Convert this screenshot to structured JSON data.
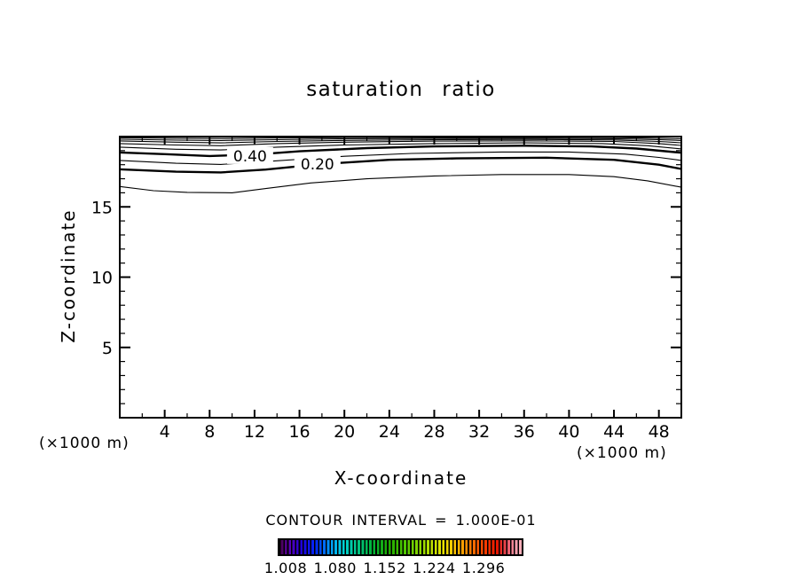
{
  "chart_data": {
    "type": "contour",
    "title": "saturation ratio",
    "xlabel": "X-coordinate",
    "ylabel": "Z-coordinate",
    "x_unit_label_left": "(×1000 m)",
    "x_unit_label_right": "(×1000 m)",
    "contour_note": "CONTOUR INTERVAL = 1.000E-01",
    "contour_interval": 0.1,
    "xlim": [
      0,
      50
    ],
    "ylim": [
      0,
      20
    ],
    "x_major_ticks": [
      4,
      8,
      12,
      16,
      20,
      24,
      28,
      32,
      36,
      40,
      44,
      48
    ],
    "x_minor_ticks": [
      2,
      6,
      10,
      14,
      18,
      22,
      26,
      30,
      34,
      38,
      42,
      46
    ],
    "y_major_ticks": [
      5,
      10,
      15
    ],
    "y_minor_ticks": [
      1,
      2,
      3,
      4,
      6,
      7,
      8,
      9,
      11,
      12,
      13,
      14,
      16,
      17,
      18,
      19
    ],
    "grid": false,
    "contours": [
      {
        "level": 0.9,
        "thick": false,
        "points": [
          [
            0,
            19.92
          ],
          [
            5,
            19.88
          ],
          [
            9,
            19.86
          ],
          [
            14,
            19.9
          ],
          [
            20,
            19.93
          ],
          [
            28,
            19.94
          ],
          [
            36,
            19.95
          ],
          [
            44,
            19.93
          ],
          [
            48,
            19.88
          ],
          [
            50,
            19.84
          ]
        ]
      },
      {
        "level": 0.8,
        "thick": false,
        "points": [
          [
            0,
            19.81
          ],
          [
            5,
            19.75
          ],
          [
            9,
            19.72
          ],
          [
            14,
            19.78
          ],
          [
            20,
            19.84
          ],
          [
            28,
            19.87
          ],
          [
            36,
            19.88
          ],
          [
            44,
            19.85
          ],
          [
            48,
            19.78
          ],
          [
            50,
            19.72
          ]
        ]
      },
      {
        "level": 0.7,
        "thick": false,
        "points": [
          [
            0,
            19.69
          ],
          [
            5,
            19.6
          ],
          [
            9,
            19.55
          ],
          [
            14,
            19.65
          ],
          [
            20,
            19.73
          ],
          [
            28,
            19.78
          ],
          [
            36,
            19.8
          ],
          [
            44,
            19.76
          ],
          [
            48,
            19.65
          ],
          [
            50,
            19.56
          ]
        ]
      },
      {
        "level": 0.6,
        "thick": false,
        "points": [
          [
            0,
            19.5
          ],
          [
            5,
            19.4
          ],
          [
            9,
            19.35
          ],
          [
            14,
            19.5
          ],
          [
            20,
            19.6
          ],
          [
            28,
            19.68
          ],
          [
            36,
            19.7
          ],
          [
            44,
            19.65
          ],
          [
            48,
            19.5
          ],
          [
            50,
            19.37
          ]
        ]
      },
      {
        "level": 0.5,
        "thick": false,
        "points": [
          [
            0,
            19.25
          ],
          [
            5,
            19.1
          ],
          [
            9,
            19.05
          ],
          [
            14,
            19.25
          ],
          [
            20,
            19.4
          ],
          [
            28,
            19.5
          ],
          [
            36,
            19.55
          ],
          [
            43,
            19.5
          ],
          [
            47,
            19.35
          ],
          [
            50,
            19.12
          ]
        ]
      },
      {
        "level": 0.4,
        "thick": true,
        "label": {
          "text": "0.40",
          "x": 11.6,
          "z": 18.62
        },
        "points": [
          [
            0,
            18.87
          ],
          [
            4,
            18.75
          ],
          [
            8,
            18.62
          ],
          [
            12,
            18.72
          ],
          [
            16,
            18.95
          ],
          [
            22,
            19.18
          ],
          [
            28,
            19.3
          ],
          [
            36,
            19.35
          ],
          [
            42,
            19.3
          ],
          [
            46,
            19.15
          ],
          [
            50,
            18.85
          ]
        ]
      },
      {
        "level": 0.3,
        "thick": false,
        "points": [
          [
            0,
            18.3
          ],
          [
            5,
            18.1
          ],
          [
            9,
            18.02
          ],
          [
            14,
            18.28
          ],
          [
            20,
            18.6
          ],
          [
            26,
            18.8
          ],
          [
            34,
            18.9
          ],
          [
            40,
            18.9
          ],
          [
            45,
            18.75
          ],
          [
            48,
            18.52
          ],
          [
            50,
            18.3
          ]
        ]
      },
      {
        "level": 0.2,
        "thick": true,
        "label": {
          "text": "0.20",
          "x": 17.6,
          "z": 18.04
        },
        "points": [
          [
            0,
            17.67
          ],
          [
            5,
            17.5
          ],
          [
            9,
            17.45
          ],
          [
            13,
            17.65
          ],
          [
            18,
            18.05
          ],
          [
            24,
            18.35
          ],
          [
            30,
            18.45
          ],
          [
            38,
            18.5
          ],
          [
            44,
            18.35
          ],
          [
            48,
            18.0
          ],
          [
            50,
            17.7
          ]
        ]
      },
      {
        "level": 0.1,
        "thick": false,
        "points": [
          [
            0,
            16.45
          ],
          [
            3,
            16.15
          ],
          [
            6,
            16.03
          ],
          [
            10,
            16.0
          ],
          [
            13,
            16.3
          ],
          [
            17,
            16.7
          ],
          [
            22,
            17.0
          ],
          [
            28,
            17.2
          ],
          [
            34,
            17.3
          ],
          [
            40,
            17.3
          ],
          [
            44,
            17.15
          ],
          [
            47,
            16.85
          ],
          [
            50,
            16.4
          ]
        ]
      }
    ],
    "colorbar": {
      "labels": [
        "1.008",
        "1.080",
        "1.152",
        "1.224",
        "1.296"
      ],
      "colors": [
        "#460046",
        "#2000dc",
        "#0028ff",
        "#00d2dc",
        "#00b43c",
        "#50c800",
        "#e6e600",
        "#ffbe00",
        "#ff7800",
        "#ff3c00",
        "#e61400",
        "#ffb4be"
      ],
      "line_color": "#000000"
    }
  }
}
